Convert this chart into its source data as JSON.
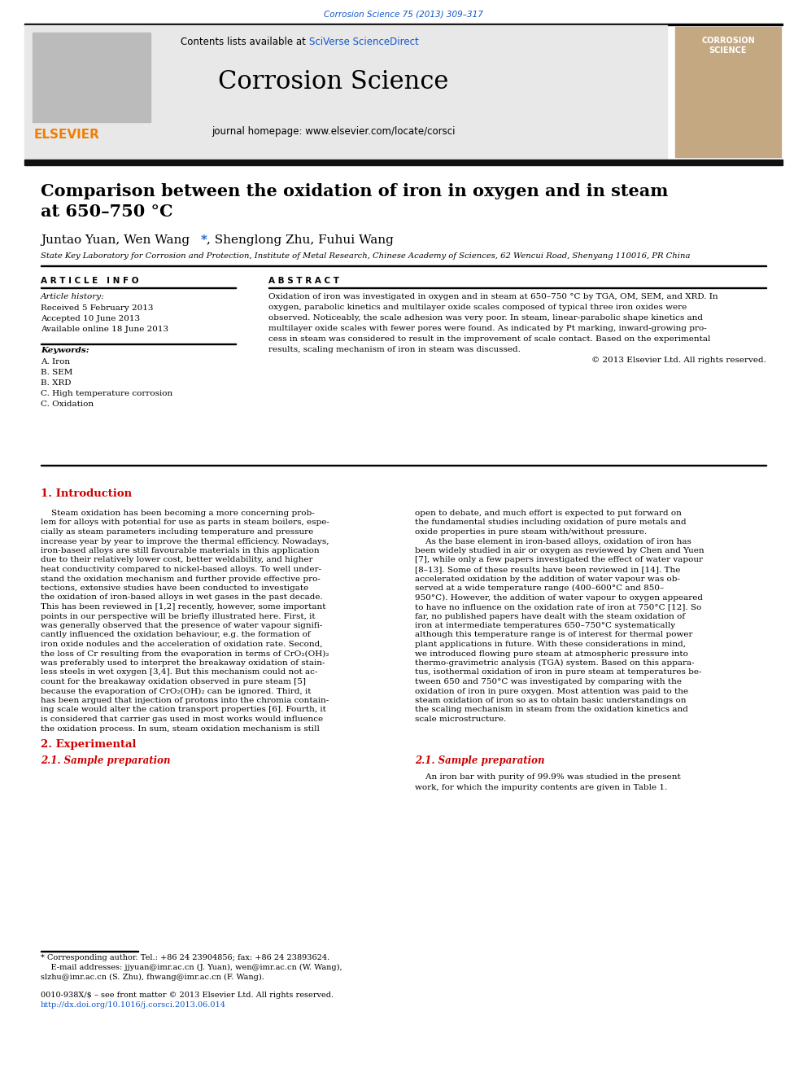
{
  "journal_ref": "Corrosion Science 75 (2013) 309–317",
  "journal_name": "Corrosion Science",
  "journal_homepage": "journal homepage: www.elsevier.com/locate/corsci",
  "affiliation": "State Key Laboratory for Corrosion and Protection, Institute of Metal Research, Chinese Academy of Sciences, 62 Wencui Road, Shenyang 110016, PR China",
  "article_info_title": "A R T I C L E   I N F O",
  "abstract_title": "A B S T R A C T",
  "article_history_label": "Article history:",
  "received": "Received 5 February 2013",
  "accepted": "Accepted 10 June 2013",
  "available": "Available online 18 June 2013",
  "keywords_label": "Keywords:",
  "keywords": [
    "A. Iron",
    "B. SEM",
    "B. XRD",
    "C. High temperature corrosion",
    "C. Oxidation"
  ],
  "copyright": "© 2013 Elsevier Ltd. All rights reserved.",
  "section1_title": "1. Introduction",
  "section2_title": "2. Experimental",
  "section21_title": "2.1. Sample preparation",
  "sample_prep_text": "An iron bar with purity of 99.9% was studied in the present work, for which the impurity contents are given in Table 1.",
  "footnote_star": "* Corresponding author. Tel.: +86 24 23904856; fax: +86 24 23893624.",
  "footnote_email1": "    E-mail addresses: jjyuan@imr.ac.cn (J. Yuan), wen@imr.ac.cn (W. Wang),",
  "footnote_email2": "slzhu@imr.ac.cn (S. Zhu), fhwang@imr.ac.cn (F. Wang).",
  "footer_issn": "0010-938X/$ – see front matter © 2013 Elsevier Ltd. All rights reserved.",
  "footer_doi": "http://dx.doi.org/10.1016/j.corsci.2013.06.014",
  "bg_color": "#ffffff",
  "header_bg": "#e8e8e8",
  "elsevier_orange": "#f07f00",
  "link_blue": "#1155cc",
  "journal_ref_color": "#1155cc",
  "black_bar_color": "#111111",
  "section_header_color": "#cc0000",
  "abstract_lines": [
    "Oxidation of iron was investigated in oxygen and in steam at 650–750 °C by TGA, OM, SEM, and XRD. In",
    "oxygen, parabolic kinetics and multilayer oxide scales composed of typical three iron oxides were",
    "observed. Noticeably, the scale adhesion was very poor. In steam, linear-parabolic shape kinetics and",
    "multilayer oxide scales with fewer pores were found. As indicated by Pt marking, inward-growing pro-",
    "cess in steam was considered to result in the improvement of scale contact. Based on the experimental",
    "results, scaling mechanism of iron in steam was discussed."
  ],
  "intro1_lines": [
    "    Steam oxidation has been becoming a more concerning prob-",
    "lem for alloys with potential for use as parts in steam boilers, espe-",
    "cially as steam parameters including temperature and pressure",
    "increase year by year to improve the thermal efficiency. Nowadays,",
    "iron-based alloys are still favourable materials in this application",
    "due to their relatively lower cost, better weldability, and higher",
    "heat conductivity compared to nickel-based alloys. To well under-",
    "stand the oxidation mechanism and further provide effective pro-",
    "tections, extensive studies have been conducted to investigate",
    "the oxidation of iron-based alloys in wet gases in the past decade.",
    "This has been reviewed in [1,2] recently, however, some important",
    "points in our perspective will be briefly illustrated here. First, it",
    "was generally observed that the presence of water vapour signifi-",
    "cantly influenced the oxidation behaviour, e.g. the formation of",
    "iron oxide nodules and the acceleration of oxidation rate. Second,",
    "the loss of Cr resulting from the evaporation in terms of CrO₂(OH)₂",
    "was preferably used to interpret the breakaway oxidation of stain-",
    "less steels in wet oxygen [3,4]. But this mechanism could not ac-",
    "count for the breakaway oxidation observed in pure steam [5]",
    "because the evaporation of CrO₂(OH)₂ can be ignored. Third, it",
    "has been argued that injection of protons into the chromia contain-",
    "ing scale would alter the cation transport properties [6]. Fourth, it",
    "is considered that carrier gas used in most works would influence",
    "the oxidation process. In sum, steam oxidation mechanism is still"
  ],
  "intro2_lines": [
    "open to debate, and much effort is expected to put forward on",
    "the fundamental studies including oxidation of pure metals and",
    "oxide properties in pure steam with/without pressure.",
    "    As the base element in iron-based alloys, oxidation of iron has",
    "been widely studied in air or oxygen as reviewed by Chen and Yuen",
    "[7], while only a few papers investigated the effect of water vapour",
    "[8–13]. Some of these results have been reviewed in [14]. The",
    "accelerated oxidation by the addition of water vapour was ob-",
    "served at a wide temperature range (400–600°C and 850–",
    "950°C). However, the addition of water vapour to oxygen appeared",
    "to have no influence on the oxidation rate of iron at 750°C [12]. So",
    "far, no published papers have dealt with the steam oxidation of",
    "iron at intermediate temperatures 650–750°C systematically",
    "although this temperature range is of interest for thermal power",
    "plant applications in future. With these considerations in mind,",
    "we introduced flowing pure steam at atmospheric pressure into",
    "thermo-gravimetric analysis (TGA) system. Based on this appara-",
    "tus, isothermal oxidation of iron in pure steam at temperatures be-",
    "tween 650 and 750°C was investigated by comparing with the",
    "oxidation of iron in pure oxygen. Most attention was paid to the",
    "steam oxidation of iron so as to obtain basic understandings on",
    "the scaling mechanism in steam from the oxidation kinetics and",
    "scale microstructure."
  ]
}
